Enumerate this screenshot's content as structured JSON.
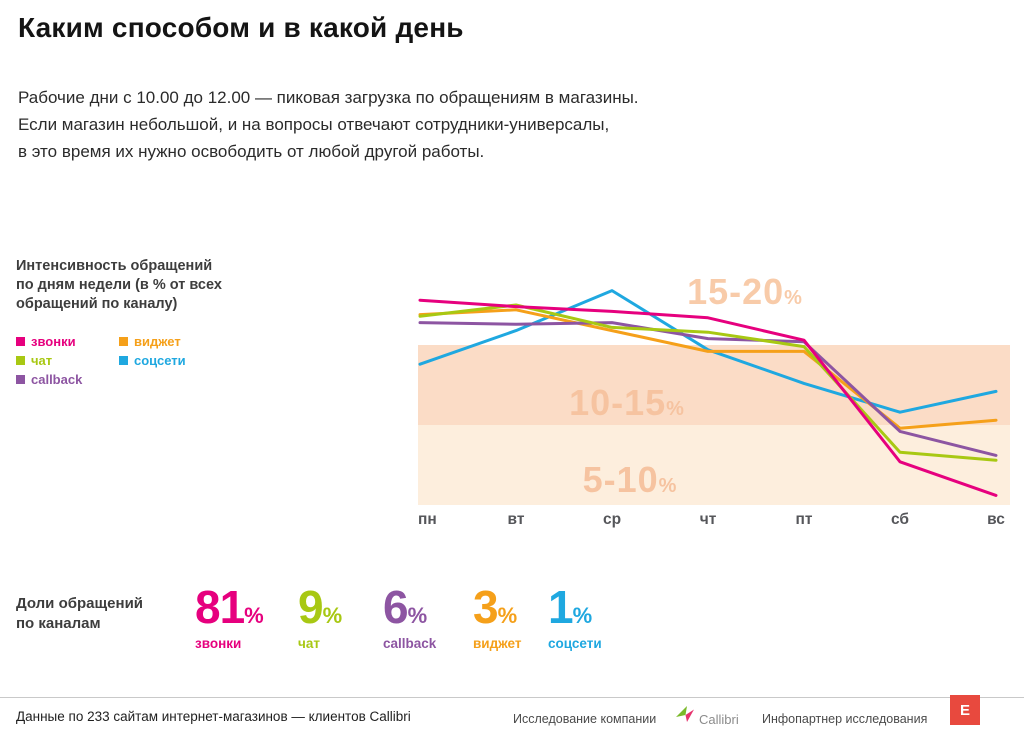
{
  "page": {
    "title": "Каким способом и в какой день",
    "intro_lines": [
      "Рабочие дни с 10.00 до 12.00 — пиковая загрузка по обращениям в магазины.",
      "Если магазин небольшой, и на вопросы отвечают сотрудники-универсалы,",
      "в это время их нужно освободить от любой другой работы."
    ]
  },
  "chart_section": {
    "label_lines": [
      "Интенсивность обращений",
      "по дням недели (в % от всех",
      "обращений по каналу)"
    ],
    "legend": [
      {
        "label": "звонки",
        "color": "#e6007e"
      },
      {
        "label": "чат",
        "color": "#a8c813"
      },
      {
        "label": "callback",
        "color": "#8d55a2"
      },
      {
        "label": "виджет",
        "color": "#f5a01a"
      },
      {
        "label": "соцсети",
        "color": "#1fa8e0"
      }
    ]
  },
  "chart_data": {
    "type": "line",
    "x": [
      "пн",
      "вт",
      "ср",
      "чт",
      "пт",
      "сб",
      "вс"
    ],
    "ylabel": "% от всех обращений по каналу",
    "ylim": [
      5,
      20
    ],
    "unit": "%",
    "grid": false,
    "legend_position": "left",
    "bands": [
      {
        "label": "15-20",
        "from": 15,
        "to": 20,
        "fill": "none",
        "label_color": "#f8cba9"
      },
      {
        "label": "10-15",
        "from": 10,
        "to": 15,
        "fill": "#fbdcc6",
        "label_color": "#f6c3a0"
      },
      {
        "label": "5-10",
        "from": 5,
        "to": 10,
        "fill": "#fdeedd",
        "label_color": "#f6c3a0"
      }
    ],
    "series": [
      {
        "name": "звонки",
        "color": "#e6007e",
        "values": [
          17.8,
          17.4,
          17.1,
          16.7,
          15.3,
          7.7,
          5.6
        ]
      },
      {
        "name": "чат",
        "color": "#a8c813",
        "values": [
          16.8,
          17.5,
          16.1,
          15.8,
          14.9,
          8.3,
          7.8
        ]
      },
      {
        "name": "callback",
        "color": "#8d55a2",
        "values": [
          16.4,
          16.3,
          16.4,
          15.4,
          15.2,
          9.6,
          8.1
        ]
      },
      {
        "name": "виджет",
        "color": "#f5a01a",
        "values": [
          16.9,
          17.2,
          15.9,
          14.6,
          14.6,
          9.8,
          10.3
        ]
      },
      {
        "name": "соцсети",
        "color": "#1fa8e0",
        "values": [
          13.8,
          15.9,
          18.4,
          14.7,
          12.6,
          10.8,
          12.1
        ]
      }
    ]
  },
  "shares": {
    "label_lines": [
      "Доли обращений",
      "по каналам"
    ],
    "items": [
      {
        "value": "81",
        "unit": "%",
        "label": "звонки",
        "color": "#e6007e"
      },
      {
        "value": "9",
        "unit": "%",
        "label": "чат",
        "color": "#a8c813"
      },
      {
        "value": "6",
        "unit": "%",
        "label": "callback",
        "color": "#8d55a2"
      },
      {
        "value": "3",
        "unit": "%",
        "label": "виджет",
        "color": "#f5a01a"
      },
      {
        "value": "1",
        "unit": "%",
        "label": "соцсети",
        "color": "#1fa8e0"
      }
    ]
  },
  "footer": {
    "source": "Данные по 233 сайтам интернет-магазинов — клиентов Callibri",
    "research_label": "Исследование компании",
    "research_brand": "Callibri",
    "partner_label": "Инфопартнер исследования",
    "partner_logo": "E"
  }
}
